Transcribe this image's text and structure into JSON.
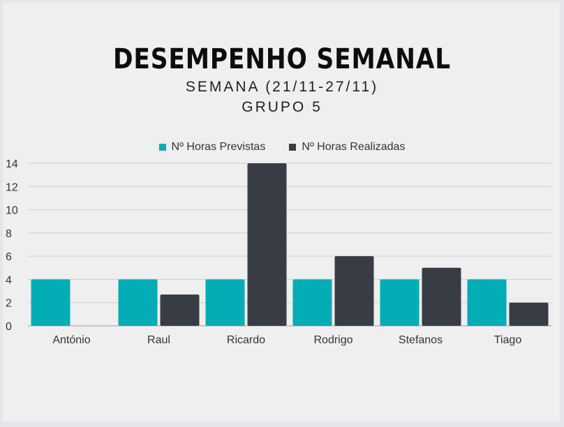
{
  "chart_data": {
    "type": "bar",
    "title": "DESEMPENHO SEMANAL",
    "subtitles": [
      "SEMANA (21/11-27/11)",
      "GRUPO 5"
    ],
    "categories": [
      "António",
      "Raul",
      "Ricardo",
      "Rodrigo",
      "Stefanos",
      "Tiago"
    ],
    "series": [
      {
        "name": "Nº Horas Previstas",
        "color": "#02adb5",
        "values": [
          4,
          4,
          4,
          4,
          4,
          4
        ]
      },
      {
        "name": "Nº Horas Realizadas",
        "color": "#383c45",
        "values": [
          0,
          2.7,
          14,
          6,
          5,
          2
        ]
      }
    ],
    "ylim": [
      0,
      14
    ],
    "yticks": [
      "0",
      "2",
      "4",
      "6",
      "8",
      "10",
      "12",
      "14"
    ],
    "grid": true,
    "legend_position": "top"
  }
}
